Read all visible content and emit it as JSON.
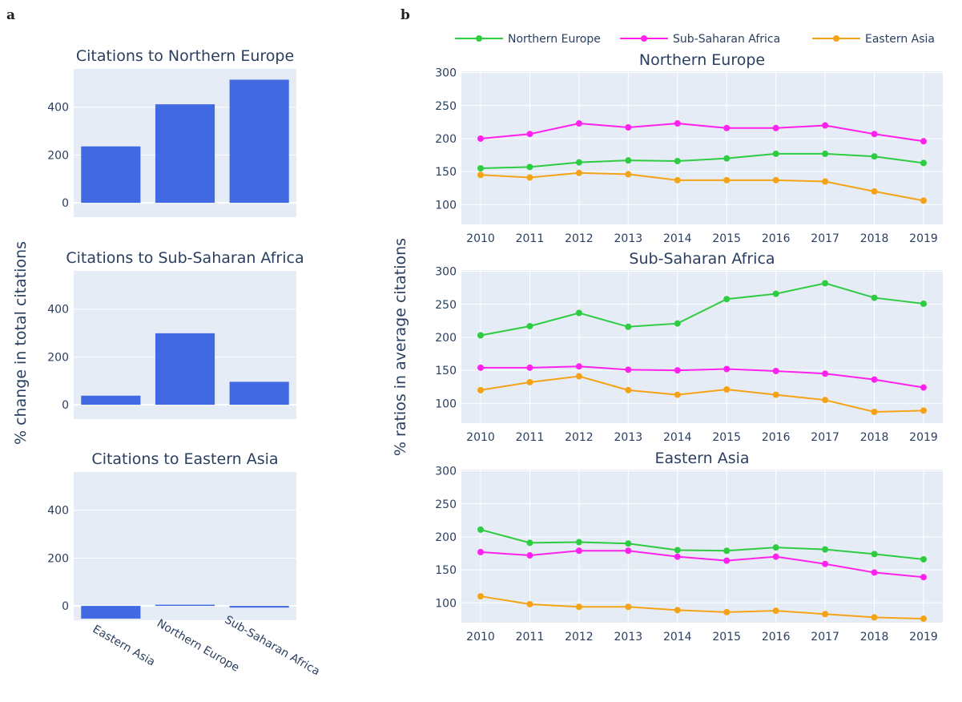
{
  "colors": {
    "bar": "#4169e1",
    "northern_europe": "#2ecc40",
    "sub_saharan_africa": "#ff21ee",
    "eastern_asia": "#f5a316"
  },
  "chart_data": [
    {
      "panel": "a",
      "type": "bar",
      "ylabel": "% change in total citations",
      "categories": [
        "Eastern Asia",
        "Northern Europe",
        "Sub-Saharan Africa"
      ],
      "ylim": [
        -60,
        560
      ],
      "yticks": [
        0,
        200,
        400
      ],
      "grid": true,
      "subplots": [
        {
          "title": "Citations to Northern Europe",
          "values": [
            236,
            412,
            515
          ]
        },
        {
          "title": "Citations to Sub-Saharan Africa",
          "values": [
            38,
            299,
            96
          ]
        },
        {
          "title": "Citations to Eastern Asia",
          "values": [
            -53,
            5,
            -7
          ]
        }
      ]
    },
    {
      "panel": "b",
      "type": "line",
      "ylabel": "% ratios in average citations",
      "x": [
        2010,
        2011,
        2012,
        2013,
        2014,
        2015,
        2016,
        2017,
        2018,
        2019
      ],
      "ylim": [
        70,
        302
      ],
      "yticks": [
        100,
        150,
        200,
        250,
        300
      ],
      "grid": true,
      "legend": {
        "placement": "top",
        "entries": [
          "Northern Europe",
          "Sub-Saharan Africa",
          "Eastern Asia"
        ]
      },
      "subplots": [
        {
          "title": "Northern Europe",
          "series": [
            {
              "name": "Northern Europe",
              "values": [
                155,
                157,
                164,
                167,
                166,
                170,
                177,
                177,
                173,
                163
              ]
            },
            {
              "name": "Sub-Saharan Africa",
              "values": [
                200,
                207,
                223,
                217,
                223,
                216,
                216,
                220,
                207,
                196
              ]
            },
            {
              "name": "Eastern Asia",
              "values": [
                145,
                141,
                148,
                146,
                137,
                137,
                137,
                135,
                120,
                106
              ]
            }
          ]
        },
        {
          "title": "Sub-Saharan Africa",
          "series": [
            {
              "name": "Northern Europe",
              "values": [
                203,
                217,
                237,
                216,
                221,
                258,
                266,
                282,
                260,
                251
              ]
            },
            {
              "name": "Sub-Saharan Africa",
              "values": [
                154,
                154,
                156,
                151,
                150,
                152,
                149,
                145,
                136,
                124
              ]
            },
            {
              "name": "Eastern Asia",
              "values": [
                120,
                132,
                141,
                120,
                113,
                121,
                113,
                105,
                87,
                89
              ]
            }
          ]
        },
        {
          "title": "Eastern Asia",
          "series": [
            {
              "name": "Northern Europe",
              "values": [
                211,
                191,
                192,
                190,
                180,
                179,
                184,
                181,
                174,
                166
              ]
            },
            {
              "name": "Sub-Saharan Africa",
              "values": [
                177,
                172,
                179,
                179,
                170,
                164,
                170,
                159,
                146,
                139
              ]
            },
            {
              "name": "Eastern Asia",
              "values": [
                110,
                98,
                94,
                94,
                89,
                86,
                88,
                83,
                78,
                76
              ]
            }
          ]
        }
      ]
    }
  ]
}
